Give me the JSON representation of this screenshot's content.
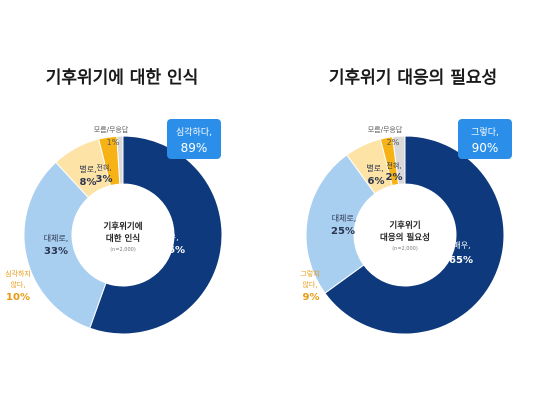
{
  "chart_data": [
    {
      "type": "pie",
      "title": "기후위기에 대한 인식",
      "center_title_lines": [
        "기후위기에",
        "대한 인식"
      ],
      "center_note": "(n=2,000)",
      "badge": {
        "text": "심각하다,",
        "value": "89%"
      },
      "segments": [
        {
          "name": "매우,",
          "value": 56,
          "label": "56%",
          "color": "#0e3a7d"
        },
        {
          "name": "대체로,",
          "value": 33,
          "label": "33%",
          "color": "#a9cff0"
        },
        {
          "name": "별로,",
          "value": 8,
          "label": "8%",
          "color": "#fde3a5"
        },
        {
          "name": "전혀,",
          "value": 3,
          "label": "3%",
          "color": "#f7b316"
        },
        {
          "name": "모름/무응답",
          "value": 1,
          "label": "1%",
          "color": "#d9d9d9"
        }
      ],
      "side_note": {
        "lines": [
          "심각하지",
          "않다,"
        ],
        "value": "10%"
      }
    },
    {
      "type": "pie",
      "title": "기후위기 대응의 필요성",
      "center_title_lines": [
        "기후위기",
        "대응의 필요성"
      ],
      "center_note": "(n=2,000)",
      "badge": {
        "text": "그렇다,",
        "value": "90%"
      },
      "segments": [
        {
          "name": "매우,",
          "value": 65,
          "label": "65%",
          "color": "#0e3a7d"
        },
        {
          "name": "대체로,",
          "value": 25,
          "label": "25%",
          "color": "#a9cff0"
        },
        {
          "name": "별로,",
          "value": 6,
          "label": "6%",
          "color": "#fde3a5"
        },
        {
          "name": "전혀,",
          "value": 2,
          "label": "2%",
          "color": "#f7b316"
        },
        {
          "name": "모름/무응답",
          "value": 2,
          "label": "2%",
          "color": "#d9d9d9"
        }
      ],
      "side_note": {
        "lines": [
          "그렇지",
          "않다,"
        ],
        "value": "9%"
      }
    }
  ],
  "colors": {
    "badge": "#2b8ee8",
    "side_note": "#e79a12"
  }
}
